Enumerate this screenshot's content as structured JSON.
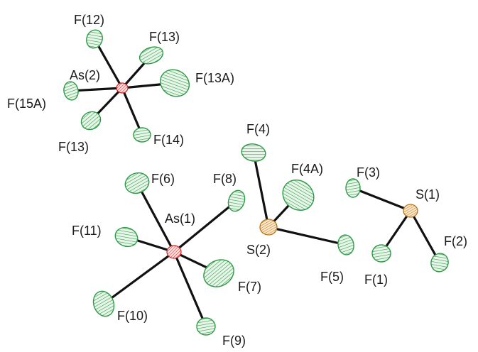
{
  "labels": [
    "F(12)",
    "F(13)",
    "As(2)",
    "F(13A)",
    "F(15A)",
    "F(13)",
    "F(14)",
    "F(4)",
    "F(4A)",
    "F(3)",
    "S(1)",
    "F(6)",
    "F(8)",
    "As(1)",
    "F(11)",
    "S(2)",
    "F(2)",
    "F(5)",
    "F(1)",
    "F(7)",
    "F(10)",
    "F(9)"
  ]
}
